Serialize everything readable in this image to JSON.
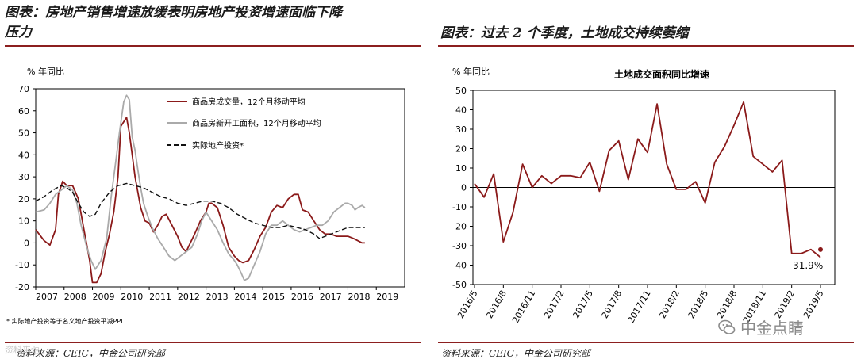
{
  "left": {
    "title_line1": "图表：房地产销售增速放缓表明房地产投资增速面临下降",
    "title_line2": "压力",
    "unit": "% 年同比",
    "footnote": "* 实际地产投资等于名义地产投资平减PPI",
    "source": "资料来源：CEIC，中金公司研究部"
  },
  "right": {
    "title": "图表：过去 2 个季度，土地成交持续萎缩",
    "unit": "% 年同比",
    "source": "资料来源：CEIC，中金公司研究部"
  },
  "watermark_left": "资料来源",
  "logo_text": "中金点睛",
  "colors": {
    "rule": "#8c1f1f",
    "series1": "#8b1a1a",
    "series2": "#aaaaaa",
    "series3": "#111111"
  },
  "chart_data": [
    {
      "type": "line",
      "title": "",
      "ylabel": "% 年同比",
      "ylim": [
        -20,
        70
      ],
      "yticks": [
        -20,
        -10,
        0,
        10,
        20,
        30,
        40,
        50,
        60,
        70
      ],
      "xlim": [
        2007,
        2020
      ],
      "xticks": [
        "2007",
        "2008",
        "2009",
        "2010",
        "2011",
        "2012",
        "2013",
        "2014",
        "2015",
        "2016",
        "2017",
        "2018",
        "2019"
      ],
      "grid": false,
      "legend_position": "top-right",
      "series": [
        {
          "name": "商品房成交量，12个月移动平均",
          "color": "#8b1a1a",
          "style": "solid",
          "points": [
            [
              2007.0,
              6
            ],
            [
              2007.3,
              1
            ],
            [
              2007.5,
              -1
            ],
            [
              2007.7,
              6
            ],
            [
              2007.8,
              22
            ],
            [
              2007.95,
              28
            ],
            [
              2008.1,
              26
            ],
            [
              2008.3,
              26
            ],
            [
              2008.5,
              20
            ],
            [
              2008.7,
              6
            ],
            [
              2008.9,
              -8
            ],
            [
              2009.0,
              -18
            ],
            [
              2009.15,
              -18
            ],
            [
              2009.3,
              -14
            ],
            [
              2009.45,
              -4
            ],
            [
              2009.6,
              4
            ],
            [
              2009.75,
              14
            ],
            [
              2009.9,
              30
            ],
            [
              2010.0,
              53
            ],
            [
              2010.1,
              55
            ],
            [
              2010.2,
              57
            ],
            [
              2010.3,
              50
            ],
            [
              2010.5,
              30
            ],
            [
              2010.7,
              16
            ],
            [
              2010.85,
              10
            ],
            [
              2011.0,
              9
            ],
            [
              2011.15,
              5
            ],
            [
              2011.3,
              8
            ],
            [
              2011.45,
              12
            ],
            [
              2011.6,
              13
            ],
            [
              2011.8,
              8
            ],
            [
              2012.0,
              3
            ],
            [
              2012.15,
              -2
            ],
            [
              2012.3,
              -4
            ],
            [
              2012.45,
              0
            ],
            [
              2012.6,
              4
            ],
            [
              2012.8,
              10
            ],
            [
              2013.0,
              14
            ],
            [
              2013.1,
              18
            ],
            [
              2013.2,
              18
            ],
            [
              2013.4,
              16
            ],
            [
              2013.6,
              8
            ],
            [
              2013.8,
              -2
            ],
            [
              2014.0,
              -6
            ],
            [
              2014.15,
              -8
            ],
            [
              2014.3,
              -9
            ],
            [
              2014.5,
              -8
            ],
            [
              2014.7,
              -3
            ],
            [
              2014.9,
              3
            ],
            [
              2015.1,
              7
            ],
            [
              2015.3,
              14
            ],
            [
              2015.5,
              17
            ],
            [
              2015.7,
              16
            ],
            [
              2015.9,
              20
            ],
            [
              2016.1,
              22
            ],
            [
              2016.25,
              22
            ],
            [
              2016.4,
              15
            ],
            [
              2016.6,
              14
            ],
            [
              2016.8,
              10
            ],
            [
              2017.0,
              6
            ],
            [
              2017.2,
              4
            ],
            [
              2017.4,
              4
            ],
            [
              2017.6,
              3
            ],
            [
              2017.8,
              3
            ],
            [
              2018.0,
              3
            ],
            [
              2018.2,
              2
            ],
            [
              2018.35,
              1
            ],
            [
              2018.5,
              0
            ],
            [
              2018.6,
              0
            ]
          ]
        },
        {
          "name": "商品房新开工面积，12个月移动平均",
          "color": "#aaaaaa",
          "style": "solid",
          "points": [
            [
              2007.0,
              14
            ],
            [
              2007.3,
              15
            ],
            [
              2007.5,
              18
            ],
            [
              2007.7,
              22
            ],
            [
              2007.9,
              24
            ],
            [
              2008.1,
              26
            ],
            [
              2008.3,
              24
            ],
            [
              2008.45,
              18
            ],
            [
              2008.6,
              8
            ],
            [
              2008.8,
              -2
            ],
            [
              2008.95,
              -8
            ],
            [
              2009.1,
              -12
            ],
            [
              2009.3,
              -8
            ],
            [
              2009.5,
              2
            ],
            [
              2009.65,
              20
            ],
            [
              2009.8,
              35
            ],
            [
              2009.95,
              50
            ],
            [
              2010.1,
              64
            ],
            [
              2010.2,
              67
            ],
            [
              2010.3,
              65
            ],
            [
              2010.4,
              48
            ],
            [
              2010.5,
              42
            ],
            [
              2010.6,
              33
            ],
            [
              2010.7,
              25
            ],
            [
              2010.8,
              18
            ],
            [
              2010.95,
              12
            ],
            [
              2011.1,
              7
            ],
            [
              2011.3,
              2
            ],
            [
              2011.5,
              -2
            ],
            [
              2011.7,
              -6
            ],
            [
              2011.9,
              -8
            ],
            [
              2012.1,
              -6
            ],
            [
              2012.3,
              -4
            ],
            [
              2012.5,
              -2
            ],
            [
              2012.7,
              4
            ],
            [
              2012.85,
              10
            ],
            [
              2013.0,
              14
            ],
            [
              2013.2,
              10
            ],
            [
              2013.4,
              6
            ],
            [
              2013.6,
              0
            ],
            [
              2013.8,
              -5
            ],
            [
              2014.0,
              -8
            ],
            [
              2014.1,
              -10
            ],
            [
              2014.25,
              -14
            ],
            [
              2014.35,
              -17
            ],
            [
              2014.5,
              -16
            ],
            [
              2014.7,
              -10
            ],
            [
              2014.9,
              -4
            ],
            [
              2015.1,
              4
            ],
            [
              2015.3,
              8
            ],
            [
              2015.5,
              8
            ],
            [
              2015.7,
              10
            ],
            [
              2015.9,
              8
            ],
            [
              2016.1,
              6
            ],
            [
              2016.3,
              5
            ],
            [
              2016.5,
              6
            ],
            [
              2016.7,
              7
            ],
            [
              2016.9,
              8
            ],
            [
              2017.1,
              8
            ],
            [
              2017.3,
              10
            ],
            [
              2017.5,
              14
            ],
            [
              2017.7,
              16
            ],
            [
              2017.9,
              18
            ],
            [
              2018.0,
              18
            ],
            [
              2018.15,
              17
            ],
            [
              2018.25,
              15
            ],
            [
              2018.35,
              16
            ],
            [
              2018.5,
              17
            ],
            [
              2018.6,
              16
            ]
          ]
        },
        {
          "name": "实际地产投资*",
          "color": "#111111",
          "style": "dashed",
          "points": [
            [
              2007.0,
              19
            ],
            [
              2007.3,
              21
            ],
            [
              2007.6,
              24
            ],
            [
              2007.9,
              26
            ],
            [
              2008.1,
              25
            ],
            [
              2008.3,
              23
            ],
            [
              2008.5,
              18
            ],
            [
              2008.7,
              14
            ],
            [
              2008.9,
              12
            ],
            [
              2009.1,
              13
            ],
            [
              2009.3,
              18
            ],
            [
              2009.6,
              23
            ],
            [
              2009.9,
              26
            ],
            [
              2010.2,
              27
            ],
            [
              2010.5,
              26
            ],
            [
              2010.8,
              25
            ],
            [
              2011.1,
              23
            ],
            [
              2011.4,
              21
            ],
            [
              2011.7,
              20
            ],
            [
              2012.0,
              18
            ],
            [
              2012.3,
              17
            ],
            [
              2012.6,
              18
            ],
            [
              2012.9,
              19
            ],
            [
              2013.2,
              19
            ],
            [
              2013.5,
              18
            ],
            [
              2013.8,
              16
            ],
            [
              2014.1,
              13
            ],
            [
              2014.4,
              11
            ],
            [
              2014.7,
              9
            ],
            [
              2015.0,
              8
            ],
            [
              2015.3,
              7
            ],
            [
              2015.6,
              7
            ],
            [
              2015.9,
              8
            ],
            [
              2016.2,
              7
            ],
            [
              2016.5,
              6
            ],
            [
              2016.8,
              4
            ],
            [
              2017.0,
              2
            ],
            [
              2017.2,
              3
            ],
            [
              2017.4,
              4
            ],
            [
              2017.6,
              5
            ],
            [
              2017.8,
              6
            ],
            [
              2018.0,
              7
            ],
            [
              2018.2,
              7
            ],
            [
              2018.4,
              7
            ],
            [
              2018.6,
              7
            ]
          ]
        }
      ]
    },
    {
      "type": "line",
      "title": "土地成交面积同比增速",
      "ylim": [
        -50,
        50
      ],
      "yticks": [
        -50,
        -40,
        -30,
        -20,
        -10,
        0,
        10,
        20,
        30,
        40,
        50
      ],
      "xticks": [
        "2016/5",
        "2016/8",
        "2016/11",
        "2017/2",
        "2017/5",
        "2017/8",
        "2017/11",
        "2018/2",
        "2018/5",
        "2018/8",
        "2018/11",
        "2019/2",
        "2019/5"
      ],
      "grid": false,
      "annotation": "-31.9%",
      "series": [
        {
          "name": "",
          "color": "#8b1a1a",
          "style": "solid",
          "x": [
            "2016/5",
            "2016/6",
            "2016/7",
            "2016/8",
            "2016/9",
            "2016/10",
            "2016/11",
            "2016/12",
            "2017/1",
            "2017/2",
            "2017/3",
            "2017/4",
            "2017/5",
            "2017/6",
            "2017/7",
            "2017/8",
            "2017/9",
            "2017/10",
            "2017/11",
            "2017/12",
            "2018/1",
            "2018/2",
            "2018/3",
            "2018/4",
            "2018/5",
            "2018/6",
            "2018/7",
            "2018/8",
            "2018/9",
            "2018/10",
            "2018/11",
            "2018/12",
            "2019/1",
            "2019/2",
            "2019/3",
            "2019/4",
            "2019/5"
          ],
          "values": [
            2,
            -5,
            7,
            -28,
            -13,
            12,
            0,
            6,
            2,
            6,
            6,
            5,
            13,
            -2,
            19,
            24,
            4,
            25,
            18,
            43,
            12,
            -1,
            -1,
            3,
            -8,
            13,
            21,
            32,
            44,
            16,
            12,
            8,
            14,
            -34,
            -34,
            -31.9,
            -36
          ]
        }
      ]
    }
  ]
}
